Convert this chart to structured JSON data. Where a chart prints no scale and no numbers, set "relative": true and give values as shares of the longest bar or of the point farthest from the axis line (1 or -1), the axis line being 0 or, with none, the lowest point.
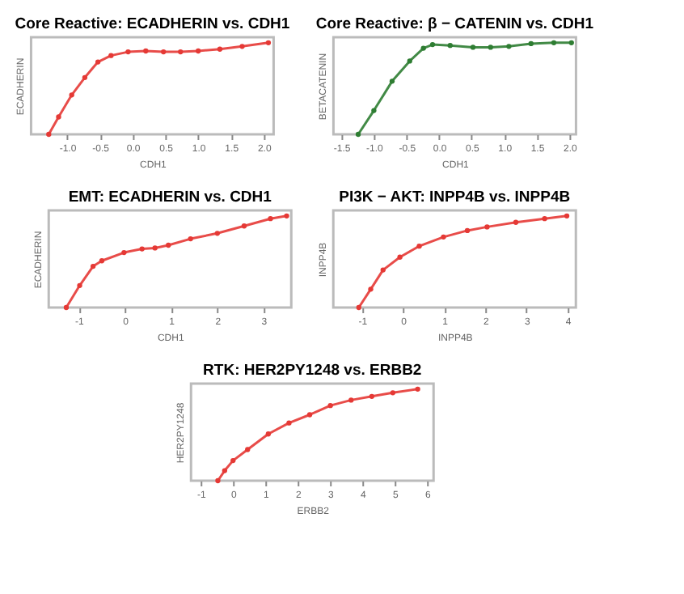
{
  "chart_data": [
    {
      "type": "line",
      "title": "Core Reactive: ECADHERIN vs. CDH1",
      "xlabel": "CDH1",
      "ylabel": "ECADHERIN",
      "relative": true,
      "tick_labels": "x",
      "marker": "circle",
      "xlim": [
        -1.55,
        2.15
      ],
      "xticks": [
        {
          "value": -1,
          "label": "-1.0"
        },
        -0.5,
        {
          "value": 0,
          "label": "0.0"
        },
        0.5,
        {
          "value": 1,
          "label": "1.0"
        },
        1.5,
        {
          "value": 2,
          "label": "2.0"
        }
      ],
      "series": [
        {
          "color": "#e53935",
          "x": [
            -1.28,
            -1.13,
            -0.93,
            -0.73,
            -0.53,
            -0.33,
            -0.07,
            0.2,
            0.47,
            0.73,
            1.0,
            1.33,
            1.67,
            2.07
          ],
          "values": [
            0,
            0.19,
            0.43,
            0.62,
            0.79,
            0.86,
            0.9,
            0.91,
            0.9,
            0.9,
            0.91,
            0.93,
            0.96,
            1.0
          ]
        }
      ]
    },
    {
      "type": "line",
      "title": "Core Reactive: β − CATENIN vs. CDH1",
      "xlabel": "CDH1",
      "ylabel": "BETACATENIN",
      "relative": true,
      "tick_labels": "x",
      "marker": "circle",
      "xlim": [
        -1.62,
        2.1
      ],
      "xticks": [
        -1.5,
        {
          "value": -1,
          "label": "-1.0"
        },
        -0.5,
        {
          "value": 0,
          "label": "0.0"
        },
        0.5,
        {
          "value": 1,
          "label": "1.0"
        },
        1.5,
        {
          "value": 2,
          "label": "2.0"
        }
      ],
      "series": [
        {
          "color": "#2e7d32",
          "x": [
            -1.24,
            -1.0,
            -0.72,
            -0.45,
            -0.24,
            -0.1,
            0.17,
            0.52,
            0.79,
            1.07,
            1.41,
            1.76,
            2.03
          ],
          "values": [
            0,
            0.26,
            0.58,
            0.8,
            0.94,
            0.98,
            0.97,
            0.95,
            0.95,
            0.96,
            0.99,
            1.0,
            1.0
          ]
        }
      ]
    },
    {
      "type": "line",
      "title": "EMT: ECADHERIN vs. CDH1",
      "xlabel": "CDH1",
      "ylabel": "ECADHERIN",
      "relative": true,
      "tick_labels": "x",
      "marker": "circle",
      "xlim": [
        -1.65,
        3.6
      ],
      "xticks": [
        -1,
        0,
        1,
        2,
        3
      ],
      "series": [
        {
          "color": "#e53935",
          "x": [
            -1.27,
            -0.98,
            -0.69,
            -0.5,
            -0.02,
            0.37,
            0.65,
            0.94,
            1.42,
            2.0,
            2.58,
            3.15,
            3.5
          ],
          "values": [
            0,
            0.24,
            0.45,
            0.51,
            0.6,
            0.64,
            0.65,
            0.68,
            0.75,
            0.81,
            0.89,
            0.97,
            1.0
          ]
        }
      ]
    },
    {
      "type": "line",
      "title": "PI3K − AKT: INPP4B vs. INPP4B",
      "xlabel": "INPP4B",
      "ylabel": "INPP4B",
      "relative": true,
      "tick_labels": "x",
      "marker": "circle",
      "xlim": [
        -1.7,
        4.2
      ],
      "xticks": [
        -1,
        0,
        1,
        2,
        3,
        4
      ],
      "series": [
        {
          "color": "#e53935",
          "x": [
            -1.08,
            -0.79,
            -0.49,
            -0.08,
            0.39,
            0.98,
            1.56,
            2.04,
            2.74,
            3.44,
            3.98
          ],
          "values": [
            0,
            0.2,
            0.41,
            0.55,
            0.67,
            0.77,
            0.84,
            0.88,
            0.93,
            0.97,
            1.0
          ]
        }
      ]
    },
    {
      "type": "line",
      "title": "RTK: HER2PY1248 vs. ERBB2",
      "xlabel": "ERBB2",
      "ylabel": "HER2PY1248",
      "relative": true,
      "tick_labels": "x",
      "marker": "circle",
      "xlim": [
        -1.3,
        6.2
      ],
      "xticks": [
        -1,
        0,
        1,
        2,
        3,
        4,
        5,
        6
      ],
      "series": [
        {
          "color": "#e53935",
          "x": [
            -0.47,
            -0.26,
            0,
            0.45,
            1.09,
            1.73,
            2.37,
            3.01,
            3.65,
            4.29,
            4.94,
            5.71
          ],
          "values": [
            0,
            0.11,
            0.22,
            0.34,
            0.51,
            0.63,
            0.72,
            0.82,
            0.88,
            0.92,
            0.96,
            1.0
          ]
        }
      ]
    }
  ]
}
